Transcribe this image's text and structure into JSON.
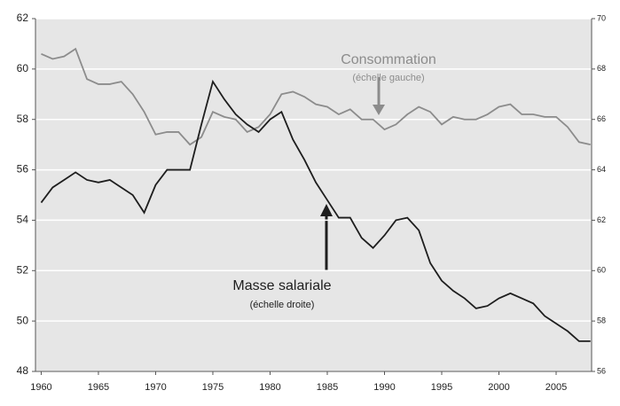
{
  "chart_data": {
    "type": "line",
    "x": [
      1960,
      1961,
      1962,
      1963,
      1964,
      1965,
      1966,
      1967,
      1968,
      1969,
      1970,
      1971,
      1972,
      1973,
      1974,
      1975,
      1976,
      1977,
      1978,
      1979,
      1980,
      1981,
      1982,
      1983,
      1984,
      1985,
      1986,
      1987,
      1988,
      1989,
      1990,
      1991,
      1992,
      1993,
      1994,
      1995,
      1996,
      1997,
      1998,
      1999,
      2000,
      2001,
      2002,
      2003,
      2004,
      2005,
      2006,
      2007,
      2008
    ],
    "series": [
      {
        "name": "Consommation",
        "color": "#8c8c8c",
        "axis": "y",
        "values": [
          60.6,
          60.4,
          60.5,
          60.8,
          59.6,
          59.4,
          59.4,
          59.5,
          59.0,
          58.3,
          57.4,
          57.5,
          57.5,
          57.0,
          57.3,
          58.3,
          58.1,
          58.0,
          57.5,
          57.7,
          58.2,
          59.0,
          59.1,
          58.9,
          58.6,
          58.5,
          58.2,
          58.4,
          58.0,
          58.0,
          57.6,
          57.8,
          58.2,
          58.5,
          58.3,
          57.8,
          58.1,
          58.0,
          58.0,
          58.2,
          58.5,
          58.6,
          58.2,
          58.2,
          58.1,
          58.1,
          57.7,
          57.1,
          57.0
        ]
      },
      {
        "name": "Masse salariale",
        "color": "#1e1e1e",
        "axis": "y2",
        "values": [
          62.7,
          63.3,
          63.6,
          63.9,
          63.6,
          63.5,
          63.6,
          63.3,
          63.0,
          62.3,
          63.4,
          64.0,
          64.0,
          64.0,
          65.8,
          67.5,
          66.8,
          66.2,
          65.8,
          65.5,
          66.0,
          66.3,
          65.2,
          64.4,
          63.5,
          62.8,
          62.1,
          62.1,
          61.3,
          60.9,
          61.4,
          62.0,
          62.1,
          61.6,
          60.3,
          59.6,
          59.2,
          58.9,
          58.5,
          58.6,
          58.9,
          59.1,
          58.9,
          58.7,
          58.2,
          57.9,
          57.6,
          57.2,
          57.2
        ]
      }
    ],
    "annotations": [
      "Consommation",
      "(échelle gauche)",
      "Masse salariale",
      "(échelle droite)"
    ],
    "xlim": [
      1959.5,
      2008.1
    ],
    "xticks": [
      1960,
      1965,
      1970,
      1975,
      1980,
      1985,
      1990,
      1995,
      2000,
      2005
    ],
    "ylim": [
      48,
      62
    ],
    "yticks": [
      48,
      50,
      52,
      54,
      56,
      58,
      60,
      62
    ],
    "y2lim": [
      56,
      70
    ],
    "y2ticks": [
      56,
      58,
      60,
      62,
      64,
      66,
      68,
      70
    ],
    "grid": true
  }
}
